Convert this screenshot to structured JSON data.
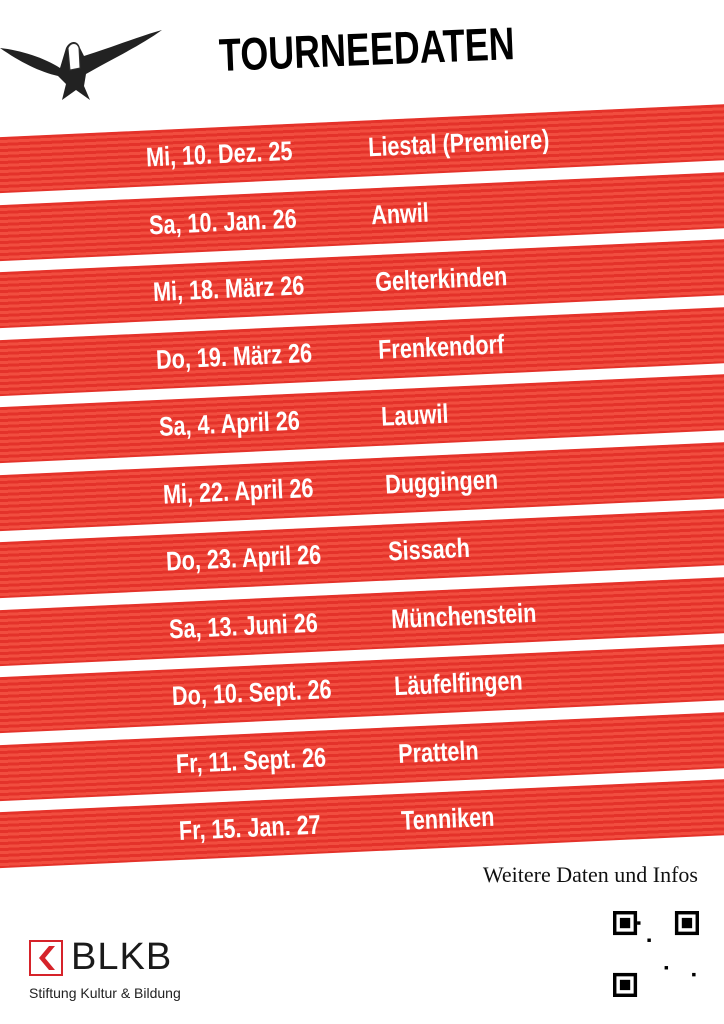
{
  "header": {
    "title": "TOURNEEDATEN",
    "bird_icon": "swallow-drawing"
  },
  "dates": [
    {
      "date": "Mi, 10. Dez. 25",
      "place": "Liestal (Premiere)"
    },
    {
      "date": "Sa, 10. Jan. 26",
      "place": "Anwil"
    },
    {
      "date": "Mi, 18. März 26",
      "place": "Gelterkinden"
    },
    {
      "date": "Do, 19. März 26",
      "place": "Frenkendorf"
    },
    {
      "date": "Sa, 4. April 26",
      "place": "Lauwil"
    },
    {
      "date": "Mi, 22. April 26",
      "place": "Duggingen"
    },
    {
      "date": "Do, 23. April 26",
      "place": "Sissach"
    },
    {
      "date": "Sa, 13. Juni 26",
      "place": "Münchenstein"
    },
    {
      "date": "Do, 10. Sept. 26",
      "place": "Läufelfingen"
    },
    {
      "date": "Fr, 11. Sept. 26",
      "place": "Pratteln"
    },
    {
      "date": "Fr, 15. Jan. 27",
      "place": "Tenniken"
    }
  ],
  "footer": {
    "more_info": "Weitere Daten und Infos",
    "logo": {
      "name": "BLKB",
      "subtitle": "Stiftung Kultur & Bildung"
    },
    "qr_icon": "qr-code"
  },
  "colors": {
    "band_red": "#e4322a",
    "band_red_light": "#f14d3f",
    "logo_red": "#d6232a"
  }
}
